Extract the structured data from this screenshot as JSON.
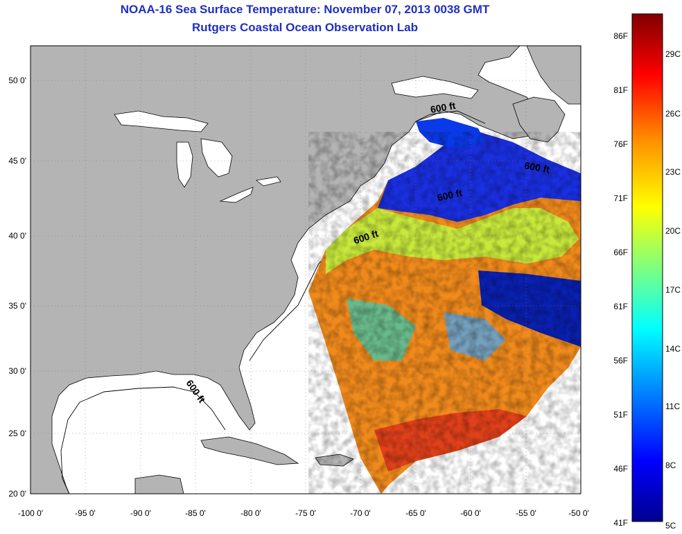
{
  "title": "NOAA-16 Sea Surface Temperature:  November 07, 2013 0038 GMT",
  "subtitle": "Rutgers Coastal Ocean Observation Lab",
  "lon_ticks": [
    "-100 0'",
    "-95 0'",
    "-90 0'",
    "-85 0'",
    "-80 0'",
    "-75 0'",
    "-70 0'",
    "-65 0'",
    "-60 0'",
    "-55 0'",
    "-50 0'"
  ],
  "lat_ticks": [
    "50 0'",
    "45 0'",
    "40 0'",
    "35 0'",
    "30 0'",
    "25 0'",
    "20 0'"
  ],
  "colorbar": {
    "fahrenheit": [
      "86F",
      "81F",
      "76F",
      "71F",
      "66F",
      "61F",
      "56F",
      "51F",
      "46F",
      "41F"
    ],
    "celsius": [
      "29C",
      "26C",
      "23C",
      "20C",
      "17C",
      "14C",
      "11C",
      "8C",
      "5C"
    ]
  },
  "contour_labels": [
    "600 ft",
    "600 ft",
    "600 ft",
    "600 ft",
    "600 ft"
  ],
  "colors": {
    "title": "#1f2fbf",
    "land": "#b4b4b4",
    "no_data": "#ffffff"
  }
}
